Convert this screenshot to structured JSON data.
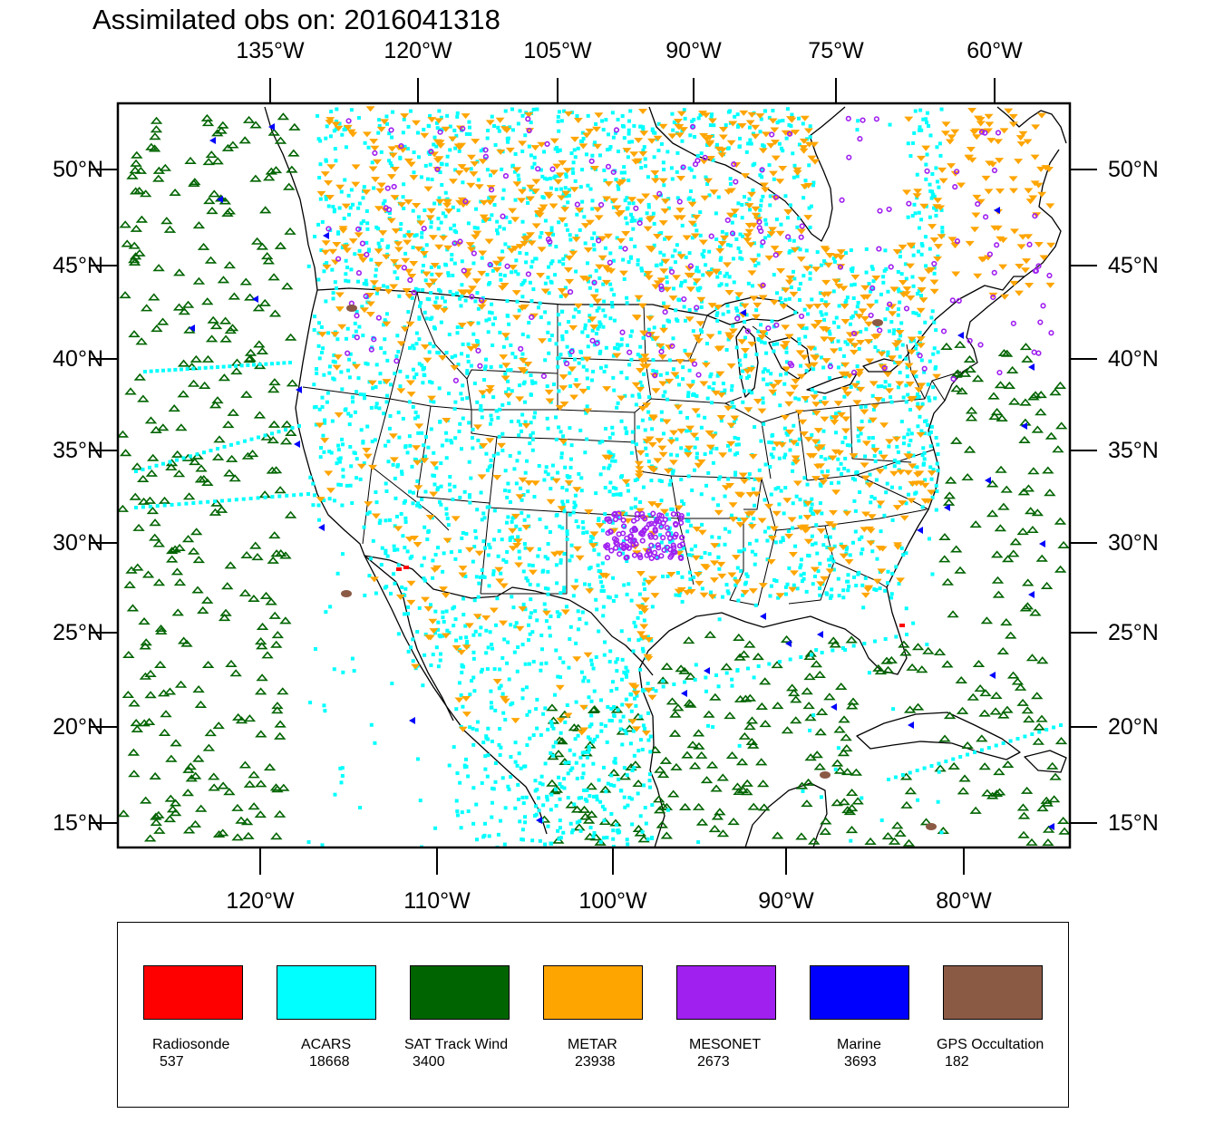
{
  "title": "Assimilated obs on: 2016041318",
  "axes": {
    "top_ticks": [
      "135°W",
      "120°W",
      "105°W",
      "90°W",
      "75°W",
      "60°W"
    ],
    "bottom_ticks": [
      "120°W",
      "110°W",
      "100°W",
      "90°W",
      "80°W"
    ],
    "lat_ticks": [
      "50°N",
      "45°N",
      "40°N",
      "35°N",
      "30°N",
      "25°N",
      "20°N",
      "15°N"
    ]
  },
  "legend": {
    "items": [
      {
        "name": "Radiosonde",
        "count": "537",
        "color": "#ff0000"
      },
      {
        "name": "ACARS",
        "count": "18668",
        "color": "#00ffff"
      },
      {
        "name": "SAT Track Wind",
        "count": "3400",
        "color": "#006400"
      },
      {
        "name": "METAR",
        "count": "23938",
        "color": "#ffa500"
      },
      {
        "name": "MESONET",
        "count": "2673",
        "color": "#a020f0"
      },
      {
        "name": "Marine",
        "count": "3693",
        "color": "#0000ff"
      },
      {
        "name": "GPS Occultation",
        "count": "182",
        "color": "#8b5a45"
      }
    ]
  }
}
